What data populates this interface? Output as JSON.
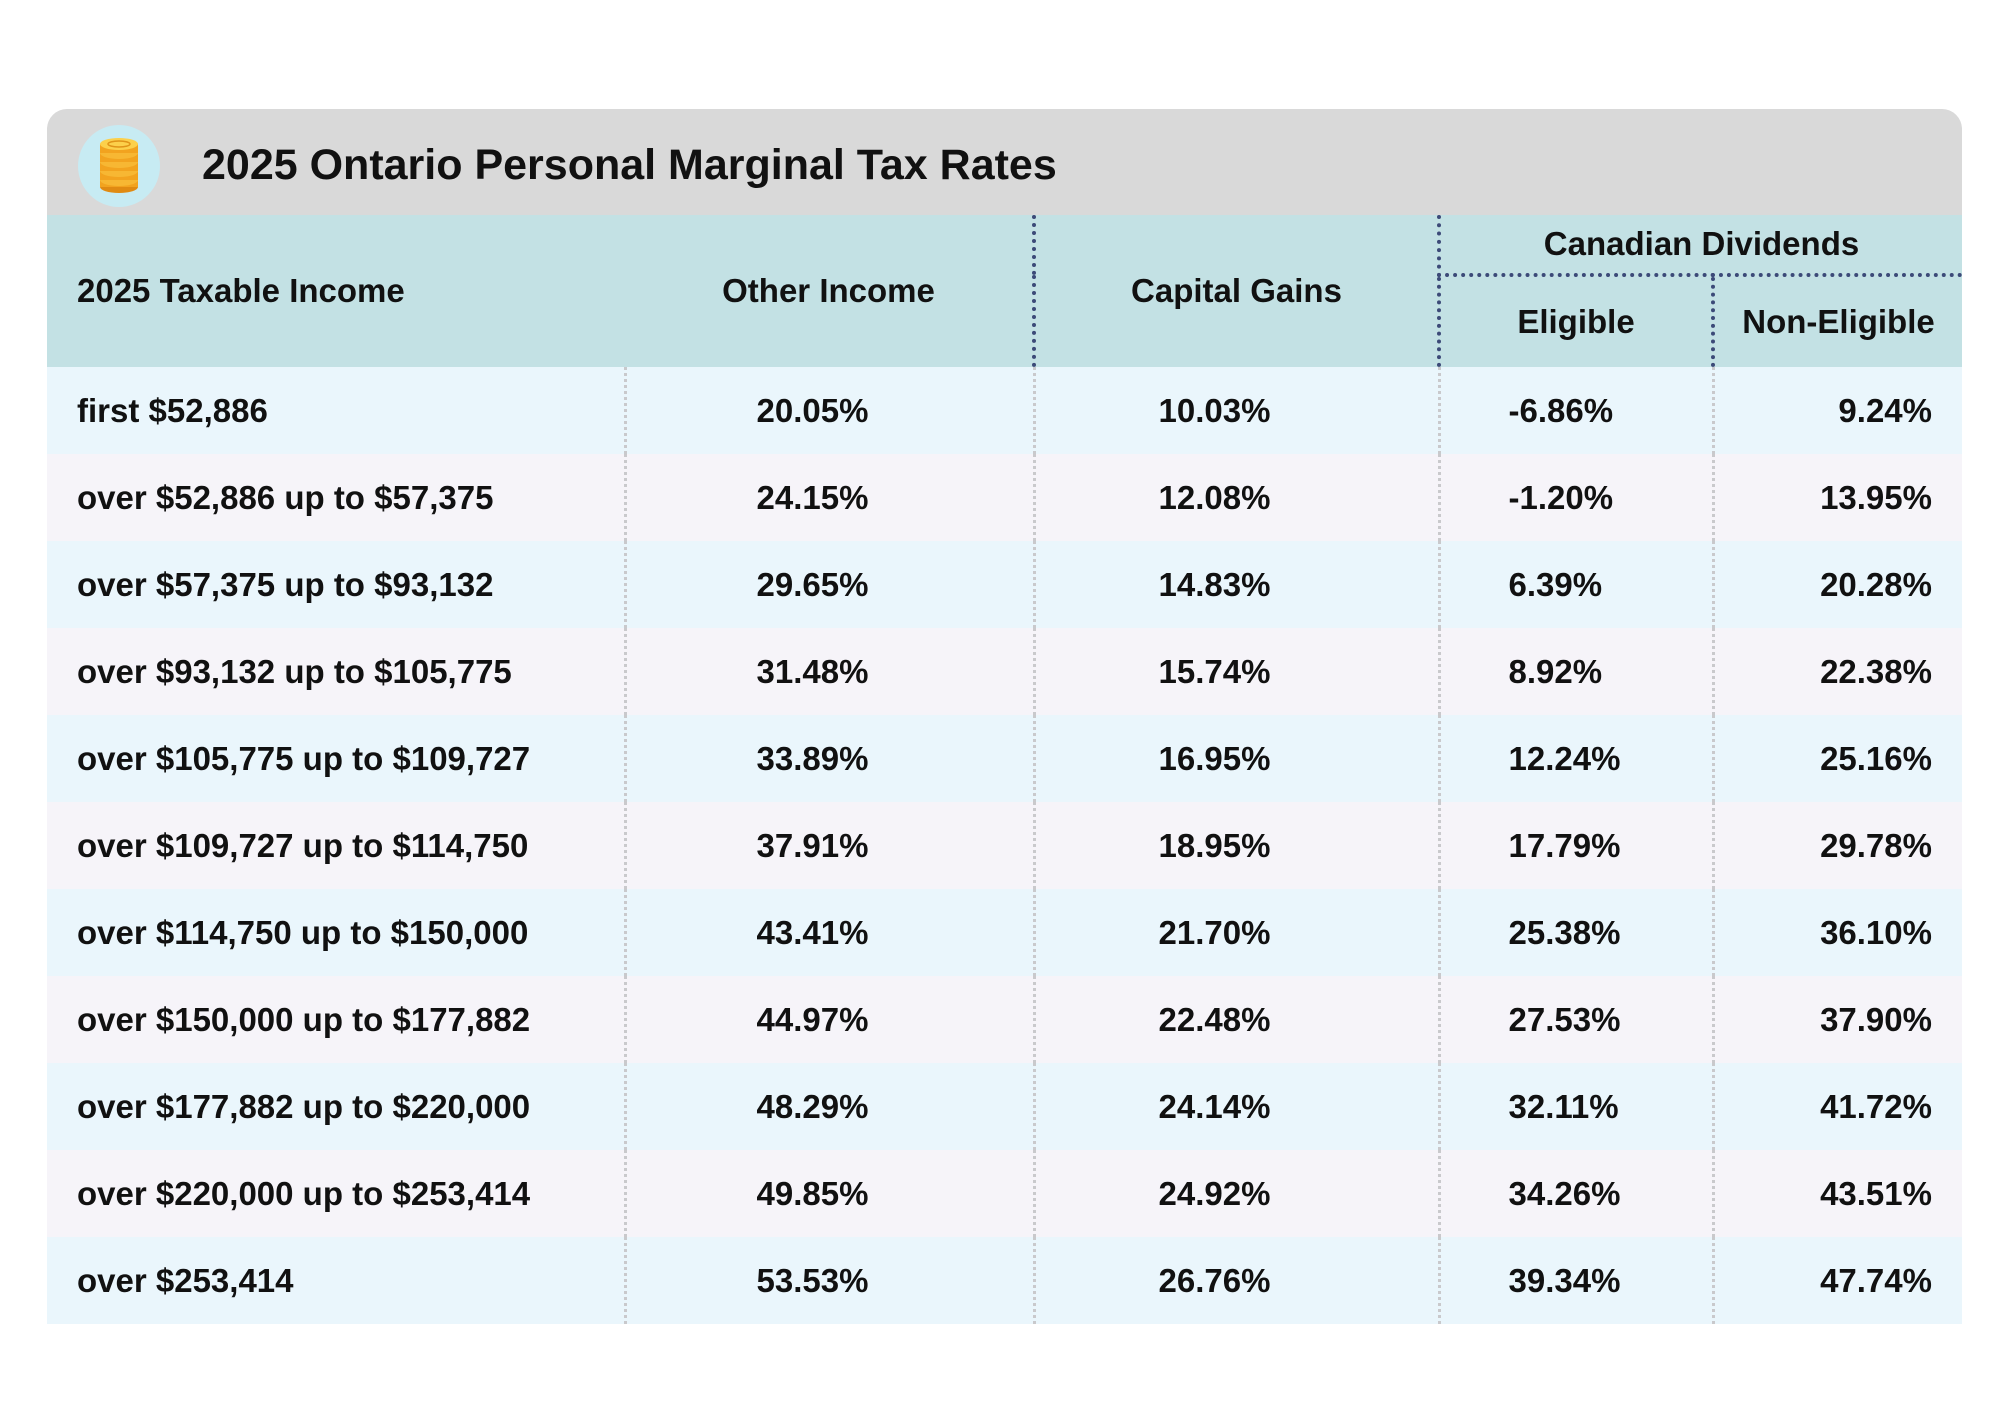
{
  "header": {
    "title": "2025 Ontario Personal Marginal Tax Rates",
    "icon": "coins-icon"
  },
  "columns": {
    "income": "2025 Taxable Income",
    "other": "Other Income",
    "capital": "Capital Gains",
    "dividends": "Canadian Dividends",
    "eligible": "Eligible",
    "non_eligible": "Non-Eligible"
  },
  "rows": [
    {
      "income": "first $52,886",
      "other": "20.05%",
      "capital": "10.03%",
      "eligible": "-6.86%",
      "non_eligible": "9.24%"
    },
    {
      "income": "over $52,886 up to $57,375",
      "other": "24.15%",
      "capital": "12.08%",
      "eligible": "-1.20%",
      "non_eligible": "13.95%"
    },
    {
      "income": "over $57,375 up to $93,132",
      "other": "29.65%",
      "capital": "14.83%",
      "eligible": "6.39%",
      "non_eligible": "20.28%"
    },
    {
      "income": "over $93,132 up to $105,775",
      "other": "31.48%",
      "capital": "15.74%",
      "eligible": "8.92%",
      "non_eligible": "22.38%"
    },
    {
      "income": "over $105,775 up to $109,727",
      "other": "33.89%",
      "capital": "16.95%",
      "eligible": "12.24%",
      "non_eligible": "25.16%"
    },
    {
      "income": "over $109,727 up to $114,750",
      "other": "37.91%",
      "capital": "18.95%",
      "eligible": "17.79%",
      "non_eligible": "29.78%"
    },
    {
      "income": "over $114,750 up to $150,000",
      "other": "43.41%",
      "capital": "21.70%",
      "eligible": "25.38%",
      "non_eligible": "36.10%"
    },
    {
      "income": "over $150,000 up to $177,882",
      "other": "44.97%",
      "capital": "22.48%",
      "eligible": "27.53%",
      "non_eligible": "37.90%"
    },
    {
      "income": "over $177,882 up to $220,000",
      "other": "48.29%",
      "capital": "24.14%",
      "eligible": "32.11%",
      "non_eligible": "41.72%"
    },
    {
      "income": "over $220,000 up to $253,414",
      "other": "49.85%",
      "capital": "24.92%",
      "eligible": "34.26%",
      "non_eligible": "43.51%"
    },
    {
      "income": "over $253,414",
      "other": "53.53%",
      "capital": "26.76%",
      "eligible": "39.34%",
      "non_eligible": "47.74%"
    }
  ]
}
